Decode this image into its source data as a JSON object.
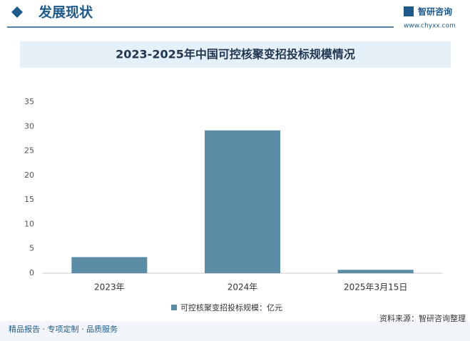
{
  "header": {
    "section": "发展现状",
    "brand": "智研咨询",
    "site": "www.chyxx.com"
  },
  "chart_data": {
    "type": "bar",
    "title": "2023-2025年中国可控核聚变招投标规模情况",
    "categories": [
      "2023年",
      "2024年",
      "2025年3月15日"
    ],
    "series": [
      {
        "name": "可控核聚变招投标规模：亿元",
        "color": "#5b8ea6",
        "values": [
          3.3,
          29.2,
          0.7
        ]
      }
    ],
    "ylim": [
      0,
      35
    ],
    "yticks": [
      0,
      5,
      10,
      15,
      20,
      25,
      30,
      35
    ],
    "grid": false
  },
  "footer": {
    "left": "精品报告 · 专项定制 · 品质服务",
    "source": "资料来源：智研咨询整理"
  }
}
